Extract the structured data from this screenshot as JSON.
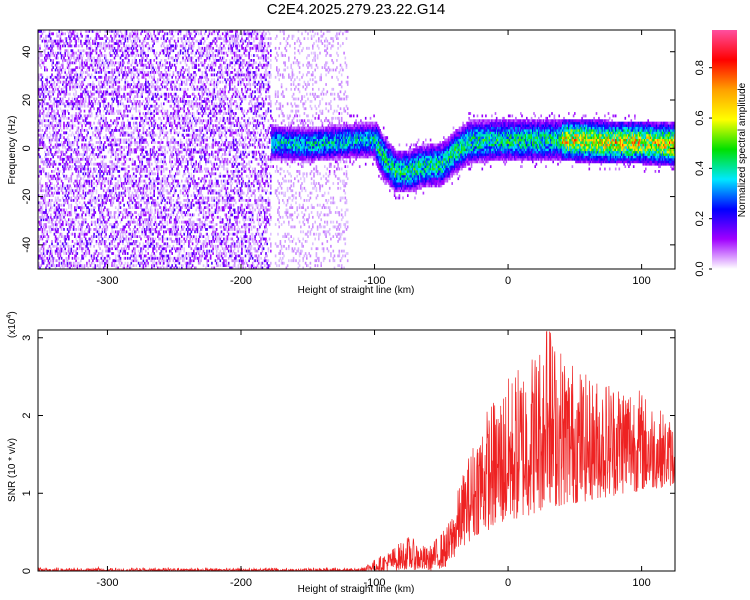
{
  "title": "C2E4.2025.279.23.22.G14",
  "chart_data": [
    {
      "type": "heatmap",
      "title": "C2E4.2025.279.23.22.G14",
      "xlabel": "Height of straight line (km)",
      "ylabel": "Frequency (Hz)",
      "xlim": [
        -352,
        125
      ],
      "ylim": [
        -50,
        49
      ],
      "x_ticks": [
        -300,
        -200,
        -100,
        0,
        100
      ],
      "y_ticks": [
        -40,
        -20,
        0,
        20,
        40
      ],
      "colorbar": {
        "label": "Normalized spectral amplitude",
        "range": [
          0,
          0.95
        ],
        "ticks": [
          0.0,
          0.2,
          0.4,
          0.6,
          0.8
        ],
        "colors": [
          "#ff4fa0",
          "#ff0000",
          "#ffa000",
          "#ffff00",
          "#00e000",
          "#00e8ff",
          "#0000ff",
          "#a000ff",
          "#ffffff"
        ]
      },
      "features": [
        {
          "name": "broadband noise",
          "x_range": [
            -352,
            -178
          ],
          "amplitude": "low"
        },
        {
          "name": "sparse noise",
          "x_range": [
            -175,
            -120
          ],
          "amplitude": "very low"
        },
        {
          "name": "ridge",
          "points": [
            [
              -178,
              2
            ],
            [
              -150,
              1
            ],
            [
              -110,
              3
            ],
            [
              -100,
              3
            ],
            [
              -95,
              -3
            ],
            [
              -85,
              -10
            ],
            [
              -75,
              -10
            ],
            [
              -65,
              -8
            ],
            [
              -50,
              -7
            ],
            [
              -40,
              -2
            ],
            [
              -30,
              2
            ],
            [
              -15,
              3
            ],
            [
              0,
              3
            ],
            [
              25,
              3
            ],
            [
              50,
              3
            ],
            [
              75,
              2
            ],
            [
              100,
              2
            ],
            [
              125,
              1
            ]
          ]
        }
      ]
    },
    {
      "type": "line",
      "xlabel": "Height of straight line (km)",
      "ylabel": "SNR (10 * v/v)",
      "y_scale_label": "(x10",
      "y_scale_exponent": "4",
      "xlim": [
        -352,
        125
      ],
      "ylim": [
        0,
        3.1
      ],
      "x_ticks": [
        -300,
        -200,
        -100,
        0,
        100
      ],
      "y_ticks": [
        0,
        1,
        2,
        3
      ],
      "series": [
        {
          "name": "SNR",
          "color": "#ee2222",
          "envelope": [
            {
              "x": -352,
              "low": 0.0,
              "high": 0.05
            },
            {
              "x": -110,
              "low": 0.0,
              "high": 0.05
            },
            {
              "x": -90,
              "low": 0.0,
              "high": 0.25
            },
            {
              "x": -75,
              "low": 0.02,
              "high": 0.45
            },
            {
              "x": -60,
              "low": 0.0,
              "high": 0.3
            },
            {
              "x": -45,
              "low": 0.05,
              "high": 0.6
            },
            {
              "x": -35,
              "low": 0.3,
              "high": 1.2
            },
            {
              "x": -20,
              "low": 0.5,
              "high": 2.0
            },
            {
              "x": 0,
              "low": 0.6,
              "high": 2.5
            },
            {
              "x": 30,
              "low": 0.8,
              "high": 3.1
            },
            {
              "x": 60,
              "low": 0.9,
              "high": 2.5
            },
            {
              "x": 90,
              "low": 1.0,
              "high": 2.5
            },
            {
              "x": 125,
              "low": 1.1,
              "high": 1.9
            }
          ]
        }
      ]
    }
  ]
}
